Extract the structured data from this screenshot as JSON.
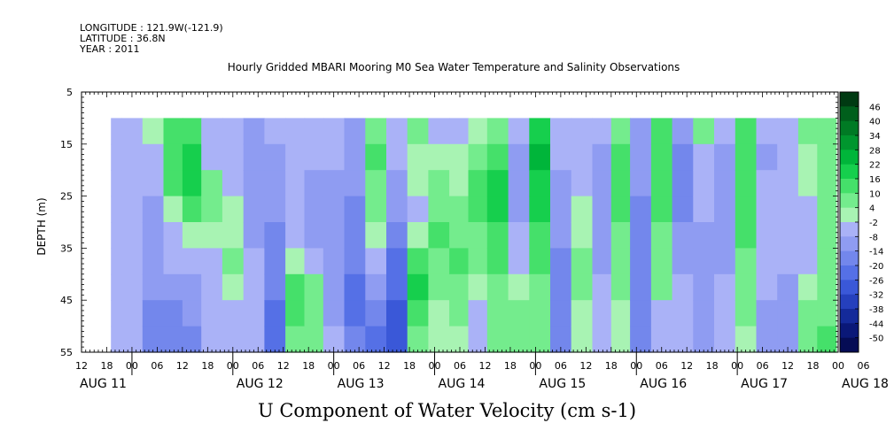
{
  "header": {
    "longitude": "LONGITUDE : 121.9W(-121.9)",
    "latitude": "LATITUDE : 36.8N",
    "year": "YEAR : 2011"
  },
  "chart_data": {
    "type": "heatmap",
    "title": "Hourly Gridded MBARI Mooring M0 Sea Water Temperature and Salinity Observations",
    "bottom_title": "U Component of Water Velocity (cm s-1)",
    "ylabel": "DEPTH (m)",
    "yticks": [
      5,
      15,
      25,
      35,
      45,
      55
    ],
    "ylim": [
      55,
      5
    ],
    "data_depth_range": [
      10,
      55
    ],
    "xlim_hours": [
      0,
      180
    ],
    "hour_tick_labels": [
      "12",
      "18",
      "00",
      "06",
      "12",
      "18",
      "00",
      "06",
      "12",
      "18",
      "00",
      "06",
      "12",
      "18",
      "00",
      "06",
      "12",
      "18",
      "00",
      "06",
      "12",
      "18",
      "00",
      "06",
      "12",
      "18",
      "00",
      "06",
      "12",
      "18",
      "00",
      "06"
    ],
    "date_labels": [
      "AUG 11",
      "AUG 12",
      "AUG 13",
      "AUG 14",
      "AUG 15",
      "AUG 16",
      "AUG 17",
      "AUG 18"
    ],
    "colorbar_labels": [
      "46",
      "40",
      "34",
      "28",
      "22",
      "16",
      "10",
      "4",
      "-2",
      "-8",
      "-14",
      "-20",
      "-26",
      "-32",
      "-38",
      "-44",
      "-50"
    ],
    "colorbar_colors": [
      "#003a12",
      "#005f1c",
      "#007a24",
      "#00962e",
      "#00b53a",
      "#16cf4d",
      "#45e06a",
      "#74ec8d",
      "#a8f3b3",
      "#aab2f7",
      "#8f9cf2",
      "#7387ec",
      "#5570e6",
      "#3a58d8",
      "#2540bd",
      "#142a9a",
      "#0a1878",
      "#050c55"
    ],
    "time_columns": [
      {
        "hour": 7,
        "speed_profile": [
          -4,
          -5,
          -6,
          -6,
          -5,
          -4,
          -4,
          -3,
          -3
        ]
      },
      {
        "hour": 12,
        "speed_profile": [
          -6,
          -6,
          -7,
          -8,
          -8,
          -7,
          -6,
          -6,
          -6
        ]
      },
      {
        "hour": 17,
        "speed_profile": [
          -2,
          -3,
          -6,
          -10,
          -12,
          -13,
          -14,
          -15,
          -15
        ]
      },
      {
        "hour": 22,
        "speed_profile": [
          10,
          14,
          12,
          2,
          -4,
          -8,
          -12,
          -15,
          -17
        ]
      },
      {
        "hour": 26,
        "speed_profile": [
          14,
          18,
          18,
          10,
          2,
          -6,
          -10,
          -14,
          -16
        ]
      },
      {
        "hour": 31,
        "speed_profile": [
          -6,
          -3,
          4,
          8,
          2,
          -4,
          -6,
          -8,
          -6
        ]
      },
      {
        "hour": 36,
        "speed_profile": [
          -8,
          -8,
          -6,
          -2,
          2,
          4,
          2,
          -4,
          -8
        ]
      },
      {
        "hour": 41,
        "speed_profile": [
          -10,
          -12,
          -14,
          -12,
          -10,
          -8,
          -6,
          -4,
          -6
        ]
      },
      {
        "hour": 46,
        "speed_profile": [
          -8,
          -10,
          -12,
          -14,
          -16,
          -18,
          -20,
          -24,
          -26
        ]
      },
      {
        "hour": 51,
        "speed_profile": [
          -4,
          -6,
          -8,
          -8,
          -6,
          2,
          10,
          12,
          8
        ]
      },
      {
        "hour": 55,
        "speed_profile": [
          -6,
          -8,
          -10,
          -12,
          -10,
          -6,
          4,
          8,
          6
        ]
      },
      {
        "hour": 60,
        "speed_profile": [
          -6,
          -8,
          -10,
          -12,
          -14,
          -14,
          -12,
          -10,
          -8
        ]
      },
      {
        "hour": 65,
        "speed_profile": [
          -10,
          -12,
          -14,
          -16,
          -18,
          -20,
          -22,
          -22,
          -20
        ]
      },
      {
        "hour": 70,
        "speed_profile": [
          8,
          10,
          8,
          4,
          -2,
          -8,
          -14,
          -20,
          -24
        ]
      },
      {
        "hour": 75,
        "speed_profile": [
          -6,
          -8,
          -10,
          -14,
          -18,
          -22,
          -26,
          -28,
          -30
        ]
      },
      {
        "hour": 80,
        "speed_profile": [
          4,
          2,
          -2,
          -4,
          2,
          10,
          16,
          12,
          8
        ]
      },
      {
        "hour": 85,
        "speed_profile": [
          -4,
          2,
          6,
          8,
          10,
          8,
          4,
          2,
          2
        ]
      },
      {
        "hour": 90,
        "speed_profile": [
          -6,
          -2,
          2,
          4,
          6,
          10,
          8,
          4,
          2
        ]
      },
      {
        "hour": 94,
        "speed_profile": [
          2,
          6,
          10,
          12,
          8,
          4,
          2,
          -4,
          -6
        ]
      },
      {
        "hour": 99,
        "speed_profile": [
          8,
          12,
          16,
          18,
          14,
          10,
          8,
          6,
          4
        ]
      },
      {
        "hour": 104,
        "speed_profile": [
          -8,
          -10,
          -12,
          -10,
          -8,
          -4,
          2,
          6,
          4
        ]
      },
      {
        "hour": 109,
        "speed_profile": [
          18,
          22,
          20,
          16,
          12,
          10,
          8,
          6,
          4
        ]
      },
      {
        "hour": 114,
        "speed_profile": [
          -6,
          -8,
          -10,
          -12,
          -14,
          -16,
          -18,
          -20,
          -18
        ]
      },
      {
        "hour": 119,
        "speed_profile": [
          -4,
          -6,
          -4,
          -2,
          2,
          4,
          4,
          2,
          -2
        ]
      },
      {
        "hour": 124,
        "speed_profile": [
          -8,
          -10,
          -12,
          -14,
          -12,
          -10,
          -8,
          -6,
          -4
        ]
      },
      {
        "hour": 128,
        "speed_profile": [
          8,
          10,
          12,
          10,
          8,
          6,
          4,
          2,
          -2
        ]
      },
      {
        "hour": 133,
        "speed_profile": [
          -10,
          -12,
          -14,
          -16,
          -18,
          -20,
          -20,
          -18,
          -16
        ]
      },
      {
        "hour": 138,
        "speed_profile": [
          10,
          12,
          14,
          12,
          8,
          6,
          4,
          -4,
          -6
        ]
      },
      {
        "hour": 143,
        "speed_profile": [
          -14,
          -16,
          -18,
          -16,
          -12,
          -10,
          -8,
          -6,
          -4
        ]
      },
      {
        "hour": 148,
        "speed_profile": [
          4,
          -4,
          -6,
          -8,
          -10,
          -12,
          -14,
          -14,
          -12
        ]
      },
      {
        "hour": 153,
        "speed_profile": [
          -8,
          -10,
          -12,
          -14,
          -12,
          -10,
          -8,
          -6,
          -4
        ]
      },
      {
        "hour": 158,
        "speed_profile": [
          10,
          12,
          14,
          12,
          10,
          8,
          6,
          4,
          2
        ]
      },
      {
        "hour": 163,
        "speed_profile": [
          -8,
          -10,
          -8,
          -6,
          -4,
          -6,
          -8,
          -10,
          -12
        ]
      },
      {
        "hour": 168,
        "speed_profile": [
          -4,
          -6,
          -8,
          -8,
          -6,
          -8,
          -10,
          -12,
          -14
        ]
      },
      {
        "hour": 173,
        "speed_profile": [
          4,
          2,
          -2,
          -4,
          -6,
          -4,
          2,
          6,
          8
        ]
      },
      {
        "hour": 177,
        "speed_profile": [
          6,
          8,
          8,
          6,
          4,
          4,
          6,
          8,
          10
        ]
      }
    ]
  }
}
